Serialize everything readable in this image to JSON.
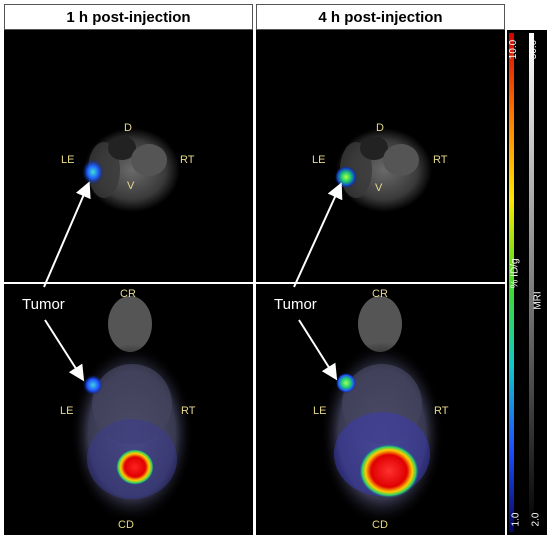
{
  "headers": {
    "left": "1 h post-injection",
    "right": "4 h post-injection"
  },
  "orientation": {
    "dorsal": "D",
    "ventral": "V",
    "left": "LE",
    "right": "RT",
    "cranial": "CR",
    "caudal": "CD"
  },
  "annotation": {
    "tumor": "Tumor"
  },
  "colorbar_pet": {
    "label": "% ID/g",
    "max": "10.0",
    "min": "1.0",
    "colors": [
      "#d60000",
      "#ff7a00",
      "#ffe600",
      "#44dd22",
      "#14c8c8",
      "#1e50ff",
      "#050560"
    ]
  },
  "colorbar_mri": {
    "label": "MRI",
    "max": "50.0",
    "min": "2.0",
    "colors": [
      "#ffffff",
      "#000000"
    ]
  }
}
